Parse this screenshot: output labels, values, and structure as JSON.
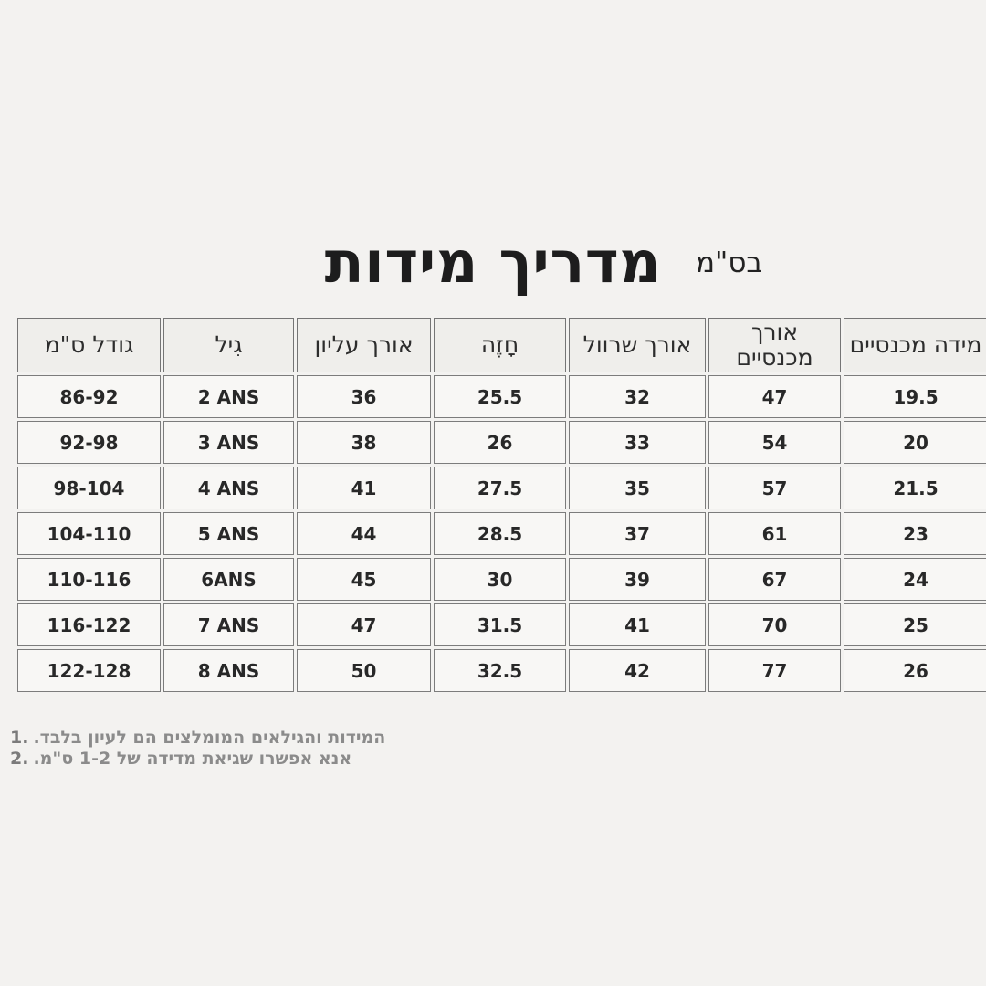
{
  "header": {
    "title": "מדריך מידות",
    "unit_note": "בס\"מ"
  },
  "table": {
    "columns": [
      "גודל ס\"מ",
      "גִיל",
      "אורך עליון",
      "חָזֶה",
      "אורך שרוול",
      "אורך מכנסיים",
      "מידה מכנסיים"
    ],
    "rows": [
      [
        "86-92",
        "2 ANS",
        "36",
        "25.5",
        "32",
        "47",
        "19.5"
      ],
      [
        "92-98",
        "3 ANS",
        "38",
        "26",
        "33",
        "54",
        "20"
      ],
      [
        "98-104",
        "4 ANS",
        "41",
        "27.5",
        "35",
        "57",
        "21.5"
      ],
      [
        "104-110",
        "5 ANS",
        "44",
        "28.5",
        "37",
        "61",
        "23"
      ],
      [
        "110-116",
        "6ANS",
        "45",
        "30",
        "39",
        "67",
        "24"
      ],
      [
        "116-122",
        "7 ANS",
        "47",
        "31.5",
        "41",
        "70",
        "25"
      ],
      [
        "122-128",
        "8 ANS",
        "50",
        "32.5",
        "42",
        "77",
        "26"
      ]
    ]
  },
  "footnotes": [
    {
      "num": "1.",
      "text": "המידות והגילאים המומלצים הם לעיון בלבד."
    },
    {
      "num": "2.",
      "text": "אנא אפשרו שגיאת מדידה של 1-2 ס\"מ."
    }
  ],
  "colors": {
    "page_background": "#f3f2f0",
    "header_cell_background": "#efeeeb",
    "data_cell_background": "#f8f7f5",
    "table_border": "#757575",
    "title_text": "#1d1d1d",
    "cell_text": "#282828",
    "footnote_text": "#8b8b8b"
  }
}
